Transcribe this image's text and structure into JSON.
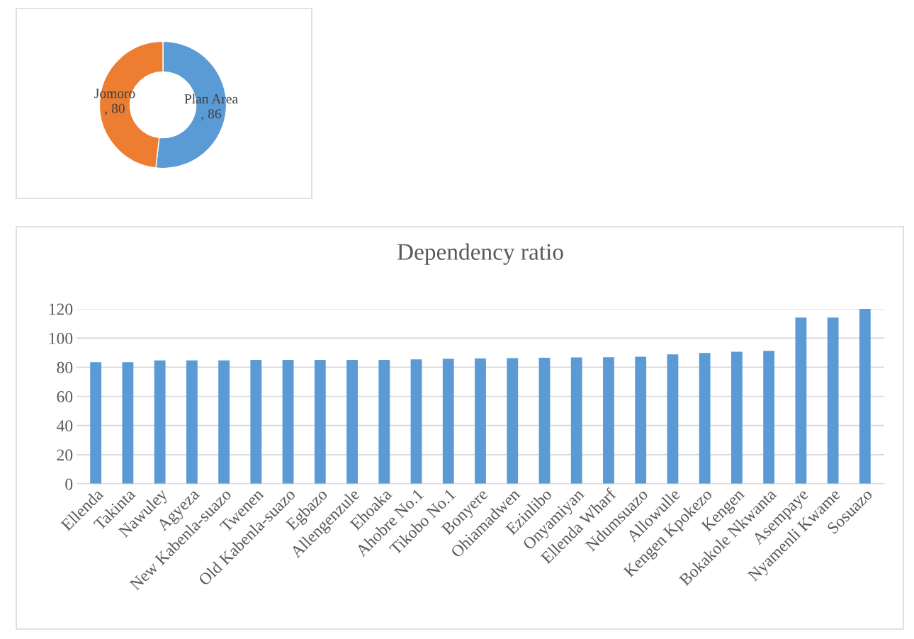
{
  "chart_data": [
    {
      "type": "donut",
      "categories": [
        "Plan Area",
        "Jomoro"
      ],
      "values": [
        86,
        80
      ],
      "colors": [
        "#5b9bd5",
        "#ed7d31"
      ],
      "value_labels": [
        ", 86",
        ", 80"
      ],
      "legend": false
    },
    {
      "type": "bar",
      "title": "Dependency ratio",
      "categories": [
        "Ellenda",
        "Takinta",
        "Nawuley",
        "Agyeza",
        "New Kabenla-suazo",
        "Twenen",
        "Old Kabenla-suazo",
        "Egbazo",
        "Allengenzule",
        "Ehoaka",
        "Ahobre No.1",
        "Tikobo No.1",
        "Bonyere",
        "Ohiamadwen",
        "Ezinlibo",
        "Onyamiyan",
        "Ellenda Wharf",
        "Ndumsuazo",
        "Allowulle",
        "Kengen Kpokezo",
        "Kengen",
        "Bokakole Nkwanta",
        "Asempaye",
        "Nyamenli Kwame",
        "Sosuazo"
      ],
      "values": [
        83.5,
        83.5,
        84.7,
        84.7,
        84.7,
        85,
        85,
        85,
        85,
        85,
        85.4,
        85.7,
        86,
        86.2,
        86.5,
        86.7,
        86.9,
        87.2,
        88.8,
        89.7,
        90.6,
        91.2,
        114,
        114,
        120
      ],
      "color": "#5b9bd5",
      "ylim": [
        0,
        120
      ],
      "yticks": [
        0,
        20,
        40,
        60,
        80,
        100,
        120
      ],
      "grid": "y",
      "legend": false
    }
  ]
}
